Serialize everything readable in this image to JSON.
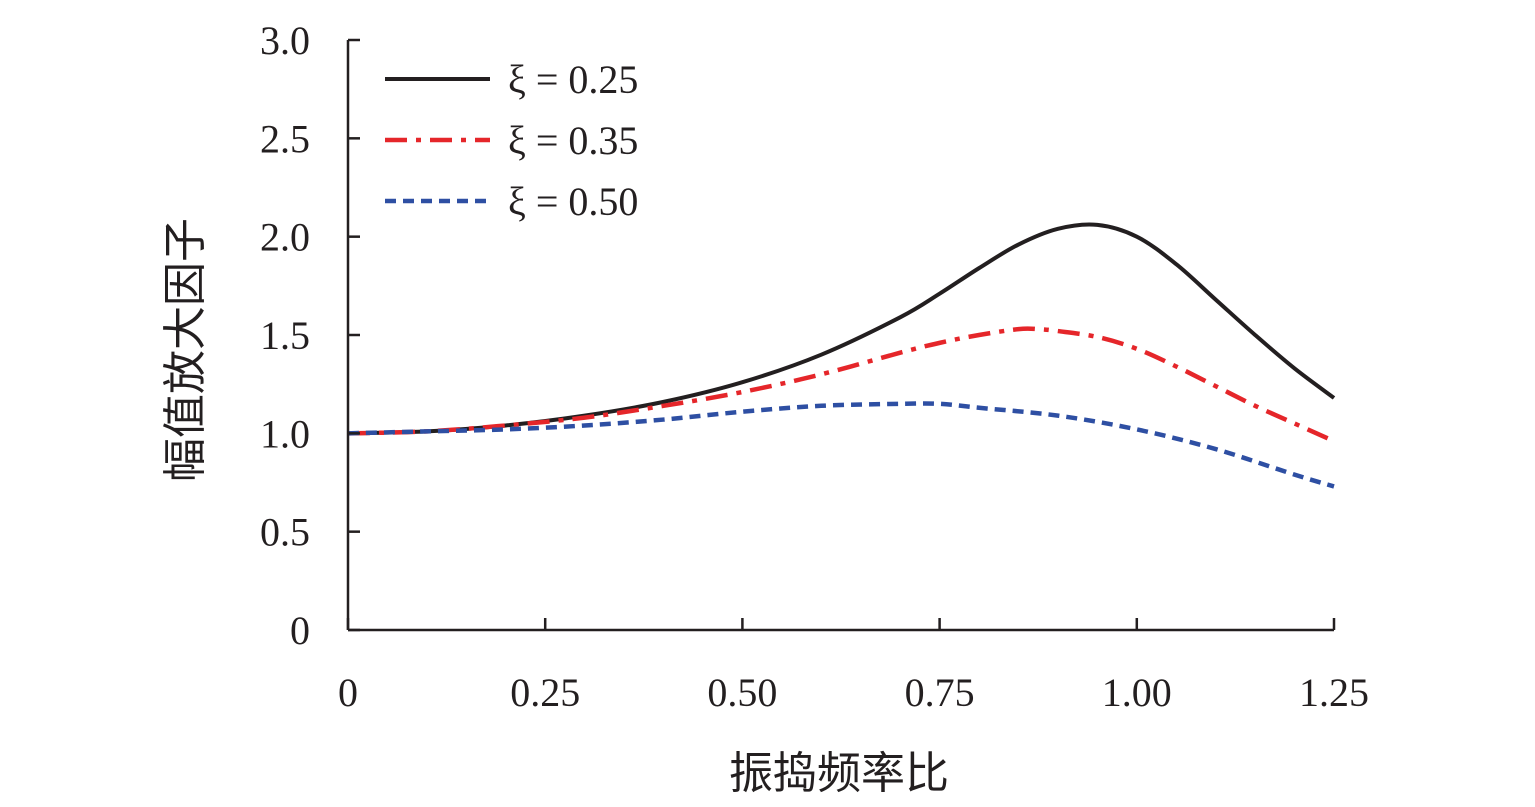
{
  "chart_data": {
    "type": "line",
    "xlabel": "振捣频率比",
    "ylabel": "幅值放大因子",
    "xlim": [
      0,
      1.25
    ],
    "ylim": [
      0,
      3.0
    ],
    "x_ticks": [
      "0",
      "0.25",
      "0.50",
      "0.75",
      "1.00",
      "1.25"
    ],
    "y_ticks": [
      "0",
      "0.5",
      "1.0",
      "1.5",
      "2.0",
      "2.5",
      "3.0"
    ],
    "grid": false,
    "legend_position": "top-left",
    "series": [
      {
        "name": "ξ = 0.25",
        "color": "#231f20",
        "style": "solid",
        "x": [
          0,
          0.1,
          0.2,
          0.3,
          0.4,
          0.5,
          0.6,
          0.7,
          0.75,
          0.8,
          0.85,
          0.9,
          0.95,
          1.0,
          1.05,
          1.1,
          1.15,
          1.2,
          1.25
        ],
        "y": [
          1.0,
          1.01,
          1.04,
          1.09,
          1.16,
          1.26,
          1.4,
          1.59,
          1.71,
          1.84,
          1.96,
          2.04,
          2.06,
          2.0,
          1.86,
          1.68,
          1.5,
          1.33,
          1.18
        ]
      },
      {
        "name": "ξ = 0.35",
        "color": "#e5262a",
        "style": "dash-dot",
        "x": [
          0,
          0.1,
          0.2,
          0.3,
          0.4,
          0.5,
          0.6,
          0.7,
          0.75,
          0.8,
          0.85,
          0.875,
          0.9,
          0.95,
          1.0,
          1.05,
          1.1,
          1.15,
          1.2,
          1.25
        ],
        "y": [
          1.0,
          1.01,
          1.04,
          1.08,
          1.14,
          1.21,
          1.3,
          1.41,
          1.46,
          1.5,
          1.53,
          1.53,
          1.52,
          1.49,
          1.43,
          1.34,
          1.24,
          1.14,
          1.05,
          0.96
        ]
      },
      {
        "name": "ξ = 0.50",
        "color": "#2e4fa3",
        "style": "dashed",
        "x": [
          0,
          0.1,
          0.2,
          0.3,
          0.4,
          0.5,
          0.6,
          0.7,
          0.75,
          0.8,
          0.9,
          1.0,
          1.1,
          1.2,
          1.25
        ],
        "y": [
          1.0,
          1.01,
          1.02,
          1.04,
          1.07,
          1.11,
          1.14,
          1.15,
          1.15,
          1.13,
          1.09,
          1.02,
          0.92,
          0.79,
          0.73
        ]
      }
    ]
  }
}
